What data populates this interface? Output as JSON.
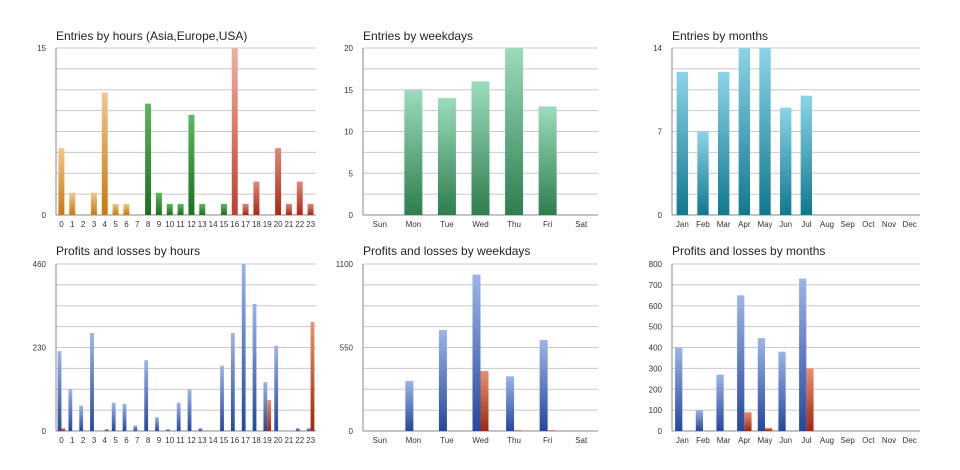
{
  "gradients": {
    "hours": [
      {
        "from": "#f0c890",
        "to": "#c87810"
      },
      {
        "from": "#f0c890",
        "to": "#c87810"
      },
      {
        "from": "#f0c890",
        "to": "#c87810"
      },
      {
        "from": "#f0c890",
        "to": "#c87810"
      },
      {
        "from": "#f0c890",
        "to": "#c87810"
      },
      {
        "from": "#f0c890",
        "to": "#c87810"
      },
      {
        "from": "#f0c890",
        "to": "#c87810"
      },
      {
        "from": "#f0c890",
        "to": "#c87810"
      },
      {
        "from": "#5cb85c",
        "to": "#1e6e1e"
      },
      {
        "from": "#5cb85c",
        "to": "#1e6e1e"
      },
      {
        "from": "#5cb85c",
        "to": "#1e6e1e"
      },
      {
        "from": "#5cb85c",
        "to": "#1e6e1e"
      },
      {
        "from": "#5cb85c",
        "to": "#1e6e1e"
      },
      {
        "from": "#5cb85c",
        "to": "#1e6e1e"
      },
      {
        "from": "#5cb85c",
        "to": "#1e6e1e"
      },
      {
        "from": "#5cb85c",
        "to": "#1e6e1e"
      },
      {
        "from": "#f0b0a0",
        "to": "#c04030"
      },
      {
        "from": "#e08878",
        "to": "#a82818"
      },
      {
        "from": "#e08878",
        "to": "#a82818"
      },
      {
        "from": "#e08878",
        "to": "#a82818"
      },
      {
        "from": "#e08878",
        "to": "#a82818"
      },
      {
        "from": "#e08878",
        "to": "#a82818"
      },
      {
        "from": "#e08878",
        "to": "#a82818"
      },
      {
        "from": "#e08878",
        "to": "#a82818"
      }
    ],
    "weekdays": {
      "from": "#9cdcbc",
      "to": "#2e7e4e"
    },
    "months": {
      "from": "#8cd4e8",
      "to": "#107890"
    },
    "profit": {
      "from": "#9cb4e8",
      "to": "#2448a0"
    },
    "loss": {
      "from": "#e89070",
      "to": "#a02810"
    }
  },
  "chart_data": [
    {
      "id": "entries-hours",
      "type": "bar",
      "title": "Entries by hours (Asia,Europe,USA)",
      "categories": [
        "0",
        "1",
        "2",
        "3",
        "4",
        "5",
        "6",
        "7",
        "8",
        "9",
        "10",
        "11",
        "12",
        "13",
        "14",
        "15",
        "16",
        "17",
        "18",
        "19",
        "20",
        "21",
        "22",
        "23"
      ],
      "values": [
        6,
        2,
        0,
        2,
        11,
        1,
        1,
        0,
        10,
        2,
        1,
        1,
        9,
        1,
        0,
        1,
        15,
        1,
        3,
        0,
        6,
        1,
        3,
        1
      ],
      "ylim": [
        0,
        15
      ],
      "yticks": [
        "0",
        "15"
      ],
      "gridlines": 8,
      "grid": true,
      "colors": "hours"
    },
    {
      "id": "entries-weekdays",
      "type": "bar",
      "title": "Entries by weekdays",
      "categories": [
        "Sun",
        "Mon",
        "Tue",
        "Wed",
        "Thu",
        "Fri",
        "Sat"
      ],
      "values": [
        0,
        15,
        14,
        16,
        20,
        13,
        0
      ],
      "ylim": [
        0,
        20
      ],
      "yticks": [
        "0",
        "5",
        "10",
        "15",
        "20"
      ],
      "gridlines": 8,
      "grid": true,
      "colors": "weekdays"
    },
    {
      "id": "entries-months",
      "type": "bar",
      "title": "Entries by months",
      "categories": [
        "Jan",
        "Feb",
        "Mar",
        "Apr",
        "May",
        "Jun",
        "Jul",
        "Aug",
        "Sep",
        "Oct",
        "Nov",
        "Dec"
      ],
      "values": [
        12,
        7,
        12,
        14,
        14,
        9,
        10,
        0,
        0,
        0,
        0,
        0
      ],
      "ylim": [
        0,
        14
      ],
      "yticks": [
        "0",
        "7",
        "14"
      ],
      "gridlines": 8,
      "grid": true,
      "colors": "months"
    },
    {
      "id": "pl-hours",
      "type": "bar",
      "title": "Profits and losses by hours",
      "categories": [
        "0",
        "1",
        "2",
        "3",
        "4",
        "5",
        "6",
        "7",
        "8",
        "9",
        "10",
        "11",
        "12",
        "13",
        "14",
        "15",
        "16",
        "17",
        "18",
        "19",
        "20",
        "21",
        "22",
        "23"
      ],
      "series": [
        {
          "values": [
            220,
            115,
            70,
            270,
            0,
            78,
            75,
            15,
            195,
            38,
            5,
            78,
            115,
            8,
            0,
            180,
            270,
            460,
            350,
            135,
            235,
            0,
            8,
            8
          ]
        },
        {
          "values": [
            8,
            0,
            0,
            0,
            5,
            0,
            0,
            0,
            0,
            0,
            0,
            0,
            0,
            0,
            0,
            0,
            0,
            0,
            0,
            85,
            0,
            0,
            0,
            300
          ]
        }
      ],
      "ylim": [
        0,
        460
      ],
      "yticks": [
        "0",
        "230",
        "460"
      ],
      "gridlines": 8,
      "grid": true,
      "colors": [
        "profit",
        "loss"
      ]
    },
    {
      "id": "pl-weekdays",
      "type": "bar",
      "title": "Profits and losses by weekdays",
      "categories": [
        "Sun",
        "Mon",
        "Tue",
        "Wed",
        "Thu",
        "Fri",
        "Sat"
      ],
      "series": [
        {
          "values": [
            0,
            330,
            665,
            1030,
            360,
            600,
            0
          ]
        },
        {
          "values": [
            0,
            0,
            0,
            395,
            5,
            5,
            0
          ]
        }
      ],
      "ylim": [
        0,
        1100
      ],
      "yticks": [
        "0",
        "550",
        "1100"
      ],
      "gridlines": 8,
      "grid": true,
      "colors": [
        "profit",
        "loss"
      ]
    },
    {
      "id": "pl-months",
      "type": "bar",
      "title": "Profits and losses by months",
      "categories": [
        "Jan",
        "Feb",
        "Mar",
        "Apr",
        "May",
        "Jun",
        "Jul",
        "Aug",
        "Sep",
        "Oct",
        "Nov",
        "Dec"
      ],
      "series": [
        {
          "values": [
            400,
            100,
            270,
            650,
            445,
            380,
            730,
            0,
            0,
            0,
            0,
            0
          ]
        },
        {
          "values": [
            0,
            0,
            0,
            90,
            15,
            0,
            300,
            0,
            0,
            0,
            0,
            0
          ]
        }
      ],
      "ylim": [
        0,
        800
      ],
      "yticks": [
        "0",
        "100",
        "200",
        "300",
        "400",
        "500",
        "600",
        "700",
        "800"
      ],
      "gridlines": 8,
      "grid": true,
      "colors": [
        "profit",
        "loss"
      ]
    }
  ]
}
